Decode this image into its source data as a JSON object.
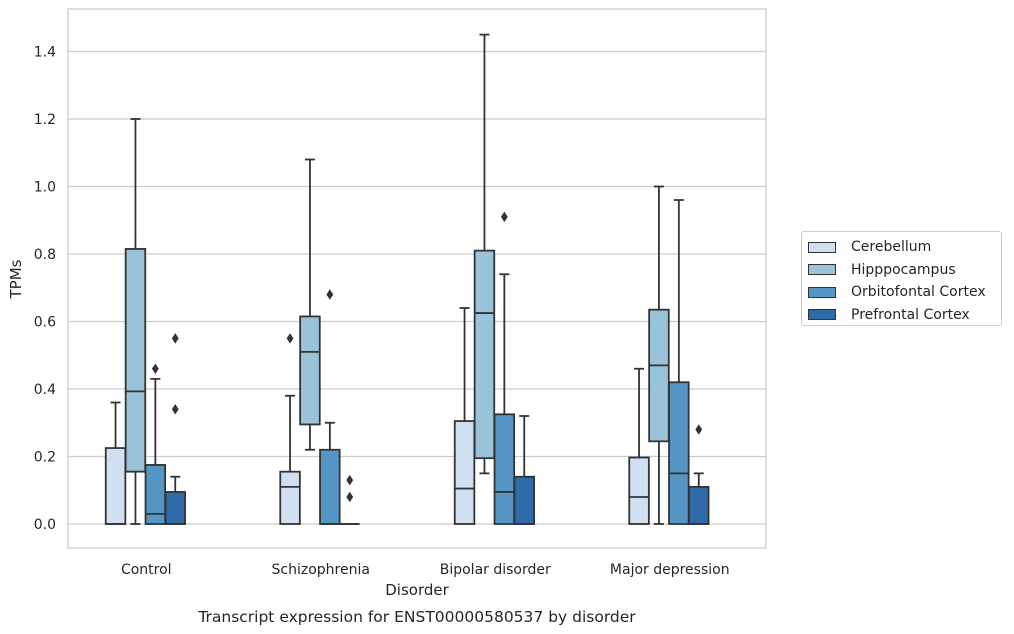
{
  "chart_data": {
    "type": "boxplot",
    "title": "Transcript expression for ENST00000580537 by disorder",
    "xlabel": "Disorder",
    "ylabel": "TPMs",
    "ylim": [
      -0.07,
      1.52
    ],
    "yticks": [
      "0.0",
      "0.2",
      "0.4",
      "0.6",
      "0.8",
      "1.0",
      "1.2",
      "1.4"
    ],
    "ytick_values": [
      0.0,
      0.2,
      0.4,
      0.6,
      0.8,
      1.0,
      1.2,
      1.4
    ],
    "grid": true,
    "legend_position": "right",
    "categories": [
      "Control",
      "Schizophrenia",
      "Bipolar disorder",
      "Major depression"
    ],
    "series": [
      {
        "name": "Cerebellum",
        "color": "#d1e0f0",
        "boxes": [
          {
            "q1": 0.0,
            "median": 0.0,
            "q3": 0.225,
            "whislo": 0.0,
            "whishi": 0.36,
            "fliers": []
          },
          {
            "q1": 0.0,
            "median": 0.11,
            "q3": 0.155,
            "whislo": 0.0,
            "whishi": 0.38,
            "fliers": [
              0.55
            ]
          },
          {
            "q1": 0.0,
            "median": 0.105,
            "q3": 0.305,
            "whislo": 0.0,
            "whishi": 0.64,
            "fliers": []
          },
          {
            "q1": 0.0,
            "median": 0.08,
            "q3": 0.197,
            "whislo": 0.0,
            "whishi": 0.46,
            "fliers": []
          }
        ]
      },
      {
        "name": "Hipppocampus",
        "color": "#9ac3da",
        "boxes": [
          {
            "q1": 0.155,
            "median": 0.393,
            "q3": 0.815,
            "whislo": 0.0,
            "whishi": 1.2,
            "fliers": []
          },
          {
            "q1": 0.295,
            "median": 0.51,
            "q3": 0.615,
            "whislo": 0.22,
            "whishi": 1.08,
            "fliers": []
          },
          {
            "q1": 0.195,
            "median": 0.625,
            "q3": 0.81,
            "whislo": 0.15,
            "whishi": 1.45,
            "fliers": []
          },
          {
            "q1": 0.245,
            "median": 0.47,
            "q3": 0.635,
            "whislo": 0.0,
            "whishi": 1.0,
            "fliers": []
          }
        ]
      },
      {
        "name": "Orbitofontal Cortex",
        "color": "#5596c4",
        "boxes": [
          {
            "q1": 0.0,
            "median": 0.03,
            "q3": 0.175,
            "whislo": 0.0,
            "whishi": 0.43,
            "fliers": [
              0.46
            ]
          },
          {
            "q1": 0.0,
            "median": 0.0,
            "q3": 0.22,
            "whislo": 0.0,
            "whishi": 0.3,
            "fliers": [
              0.68
            ]
          },
          {
            "q1": 0.0,
            "median": 0.095,
            "q3": 0.325,
            "whislo": 0.0,
            "whishi": 0.74,
            "fliers": [
              0.91
            ]
          },
          {
            "q1": 0.0,
            "median": 0.15,
            "q3": 0.42,
            "whislo": 0.0,
            "whishi": 0.96,
            "fliers": []
          }
        ]
      },
      {
        "name": "Prefrontal Cortex",
        "color": "#2e6ba8",
        "boxes": [
          {
            "q1": 0.0,
            "median": 0.0,
            "q3": 0.095,
            "whislo": 0.0,
            "whishi": 0.14,
            "fliers": [
              0.34,
              0.55
            ]
          },
          {
            "q1": 0.0,
            "median": 0.0,
            "q3": 0.0,
            "whislo": 0.0,
            "whishi": 0.0,
            "fliers": [
              0.08,
              0.13
            ]
          },
          {
            "q1": 0.0,
            "median": 0.0,
            "q3": 0.14,
            "whislo": 0.0,
            "whishi": 0.32,
            "fliers": []
          },
          {
            "q1": 0.0,
            "median": 0.0,
            "q3": 0.11,
            "whislo": 0.0,
            "whishi": 0.15,
            "fliers": [
              0.28
            ]
          }
        ]
      }
    ]
  }
}
